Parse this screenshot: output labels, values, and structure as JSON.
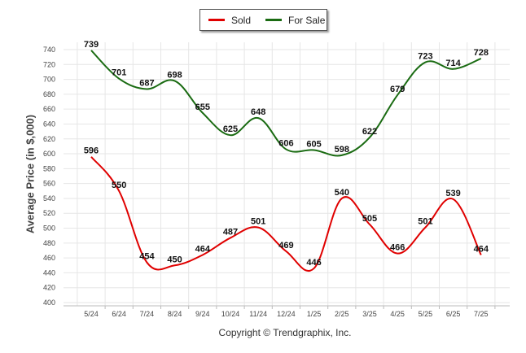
{
  "legend": {
    "sold_label": "Sold",
    "for_sale_label": "For Sale"
  },
  "copyright": "Copyright © Trendgraphix, Inc.",
  "colors": {
    "sold": "#e00000",
    "for_sale": "#1a6b12",
    "grid": "#e6e6e6"
  },
  "chart_data": {
    "type": "line",
    "title": "",
    "xlabel": "",
    "ylabel": "Average Price (in $,000)",
    "categories": [
      "5/24",
      "6/24",
      "7/24",
      "8/24",
      "9/24",
      "10/24",
      "11/24",
      "12/24",
      "1/25",
      "2/25",
      "3/25",
      "4/25",
      "5/25",
      "6/25",
      "7/25"
    ],
    "ylim": [
      400,
      740
    ],
    "yticks": [
      400,
      420,
      440,
      460,
      480,
      500,
      520,
      540,
      560,
      580,
      600,
      620,
      640,
      660,
      680,
      700,
      720,
      740
    ],
    "grid": true,
    "legend_position": "top-center",
    "series": [
      {
        "name": "Sold",
        "key": "sold",
        "values": [
          596,
          550,
          454,
          450,
          464,
          487,
          501,
          469,
          446,
          540,
          505,
          466,
          501,
          539,
          464
        ]
      },
      {
        "name": "For Sale",
        "key": "for_sale",
        "values": [
          739,
          701,
          687,
          698,
          655,
          625,
          648,
          606,
          605,
          598,
          622,
          679,
          723,
          714,
          728
        ]
      }
    ]
  }
}
